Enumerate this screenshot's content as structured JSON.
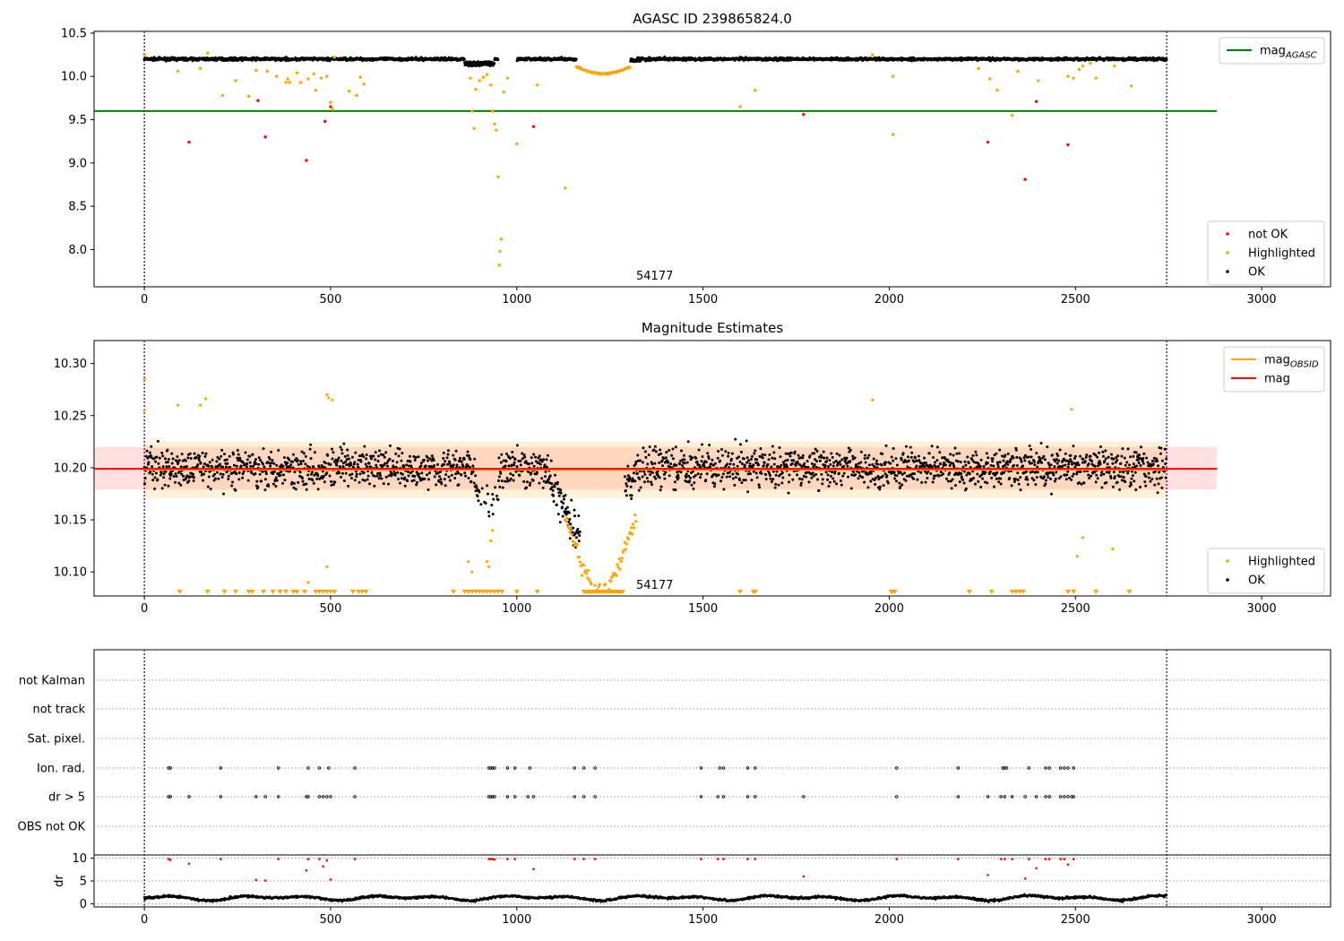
{
  "chart_data": [
    {
      "type": "scatter",
      "title": "AGASC ID 239865824.0",
      "xlim": [
        -135,
        3185
      ],
      "ylim": [
        7.57,
        10.52
      ],
      "xticks": [
        "0",
        "500",
        "1000",
        "1500",
        "2000",
        "2500",
        "3000"
      ],
      "yticks": [
        "8.0",
        "8.5",
        "9.0",
        "9.5",
        "10.0",
        "10.5"
      ],
      "annotation": "54177",
      "time_span": [
        0,
        2745
      ],
      "legends": [
        {
          "placement": "top-right",
          "entries": [
            {
              "label": "mag",
              "subscript": "AGASC",
              "color": "#008000",
              "kind": "line"
            }
          ]
        },
        {
          "placement": "bottom-right",
          "entries": [
            {
              "label": "not OK",
              "color": "#ff0000",
              "kind": "dot"
            },
            {
              "label": "Highlighted",
              "color": "#ffa500",
              "kind": "dot"
            },
            {
              "label": "OK",
              "color": "#000000",
              "kind": "dot"
            }
          ]
        }
      ],
      "lines": [
        {
          "name": "mag AGASC",
          "y": 9.6,
          "x": [
            -135,
            2880
          ],
          "color": "#008000"
        }
      ],
      "series": [
        {
          "name": "OK",
          "color": "#000000",
          "baseline": 10.2,
          "dip": {
            "from": 860,
            "to": 940,
            "min": 10.12
          }
        },
        {
          "name": "Highlighted",
          "color": "#ffa500",
          "points": [
            [
              0,
              10.25
            ],
            [
              90,
              10.06
            ],
            [
              150,
              10.09
            ],
            [
              170,
              10.27
            ],
            [
              210,
              9.78
            ],
            [
              245,
              9.95
            ],
            [
              280,
              9.77
            ],
            [
              300,
              10.07
            ],
            [
              330,
              10.06
            ],
            [
              355,
              10.0
            ],
            [
              380,
              9.93
            ],
            [
              385,
              9.97
            ],
            [
              390,
              9.93
            ],
            [
              410,
              10.04
            ],
            [
              420,
              9.93
            ],
            [
              440,
              9.97
            ],
            [
              455,
              10.03
            ],
            [
              460,
              9.84
            ],
            [
              475,
              9.98
            ],
            [
              490,
              10.0
            ],
            [
              500,
              9.7
            ],
            [
              505,
              9.62
            ],
            [
              510,
              10.22
            ],
            [
              550,
              9.83
            ],
            [
              570,
              9.78
            ],
            [
              580,
              9.99
            ],
            [
              590,
              9.91
            ],
            [
              875,
              9.98
            ],
            [
              880,
              9.6
            ],
            [
              885,
              9.4
            ],
            [
              890,
              9.85
            ],
            [
              900,
              9.95
            ],
            [
              910,
              9.99
            ],
            [
              920,
              10.02
            ],
            [
              930,
              9.9
            ],
            [
              935,
              9.6
            ],
            [
              940,
              9.45
            ],
            [
              945,
              9.38
            ],
            [
              950,
              8.84
            ],
            [
              953,
              7.82
            ],
            [
              955,
              7.98
            ],
            [
              958,
              8.12
            ],
            [
              965,
              9.82
            ],
            [
              975,
              9.98
            ],
            [
              1000,
              9.22
            ],
            [
              1055,
              9.9
            ],
            [
              1130,
              8.71
            ],
            [
              1600,
              9.65
            ],
            [
              1640,
              9.84
            ],
            [
              1955,
              10.25
            ],
            [
              2010,
              9.33
            ],
            [
              2010,
              10.0
            ],
            [
              2240,
              10.09
            ],
            [
              2270,
              9.97
            ],
            [
              2290,
              9.84
            ],
            [
              2330,
              9.55
            ],
            [
              2345,
              10.06
            ],
            [
              2400,
              9.95
            ],
            [
              2480,
              10.0
            ],
            [
              2495,
              9.98
            ],
            [
              2510,
              10.08
            ],
            [
              2520,
              10.12
            ],
            [
              2540,
              10.15
            ],
            [
              2555,
              9.98
            ],
            [
              2605,
              10.12
            ],
            [
              2650,
              9.89
            ]
          ],
          "trough": {
            "from": 1160,
            "to": 1305,
            "min": 10.03
          }
        },
        {
          "name": "not OK",
          "color": "#ff0000",
          "points": [
            [
              120,
              9.24
            ],
            [
              305,
              9.72
            ],
            [
              325,
              9.3
            ],
            [
              435,
              9.03
            ],
            [
              485,
              9.48
            ],
            [
              500,
              9.65
            ],
            [
              1045,
              9.42
            ],
            [
              1770,
              9.56
            ],
            [
              2265,
              9.24
            ],
            [
              2365,
              8.81
            ],
            [
              2395,
              9.71
            ],
            [
              2480,
              9.21
            ]
          ]
        }
      ]
    },
    {
      "type": "scatter",
      "title": "Magnitude Estimates",
      "xlim": [
        -135,
        3185
      ],
      "ylim": [
        10.077,
        10.322
      ],
      "xticks": [
        "0",
        "500",
        "1000",
        "1500",
        "2000",
        "2500",
        "3000"
      ],
      "yticks": [
        "10.10",
        "10.15",
        "10.20",
        "10.25",
        "10.30"
      ],
      "annotation": "54177",
      "legends": [
        {
          "placement": "top-right",
          "entries": [
            {
              "label": "mag",
              "subscript": "OBSID",
              "color": "#ffa500",
              "kind": "line"
            },
            {
              "label": "mag",
              "subscript": "",
              "color": "#ff0000",
              "kind": "line"
            }
          ]
        },
        {
          "placement": "bottom-right",
          "entries": [
            {
              "label": "Highlighted",
              "color": "#ffa500",
              "kind": "dot"
            },
            {
              "label": "OK",
              "color": "#000000",
              "kind": "dot"
            }
          ]
        }
      ],
      "mag": 10.199,
      "mag_band": [
        10.179,
        10.22
      ],
      "mag_obsid": 10.198,
      "mag_obsid_band": [
        10.171,
        10.225
      ],
      "series": [
        {
          "name": "OK",
          "color": "#000000",
          "center": 10.2,
          "spread": 0.018,
          "dips": [
            {
              "from": 880,
              "to": 960,
              "min": 10.13
            },
            {
              "from": 1050,
              "to": 1350,
              "min": 10.11
            }
          ]
        },
        {
          "name": "Highlighted",
          "color": "#ffa500",
          "points": [
            [
              0,
              10.285
            ],
            [
              0,
              10.255
            ],
            [
              90,
              10.26
            ],
            [
              150,
              10.26
            ],
            [
              165,
              10.266
            ],
            [
              440,
              10.09
            ],
            [
              490,
              10.27
            ],
            [
              495,
              10.267
            ],
            [
              505,
              10.265
            ],
            [
              490,
              10.105
            ],
            [
              870,
              10.11
            ],
            [
              880,
              10.1
            ],
            [
              920,
              10.11
            ],
            [
              925,
              10.105
            ],
            [
              930,
              10.13
            ],
            [
              935,
              10.14
            ],
            [
              1955,
              10.265
            ],
            [
              2490,
              10.256
            ],
            [
              2505,
              10.115
            ],
            [
              2520,
              10.133
            ],
            [
              2600,
              10.122
            ]
          ],
          "clipped_x": [
            95,
            170,
            215,
            245,
            280,
            290,
            320,
            345,
            365,
            380,
            400,
            410,
            430,
            460,
            470,
            480,
            490,
            500,
            510,
            560,
            575,
            585,
            595,
            830,
            860,
            870,
            880,
            890,
            900,
            910,
            920,
            930,
            940,
            950,
            960,
            1000,
            1055,
            1600,
            1635,
            1640,
            2005,
            2010,
            2015,
            2215,
            2275,
            2330,
            2340,
            2350,
            2360,
            2480,
            2495,
            2555,
            2645
          ]
        }
      ]
    },
    {
      "type": "scatter",
      "title": "",
      "xlim": [
        -135,
        3185
      ],
      "ylabel": "dr",
      "categories": [
        "not Kalman",
        "not track",
        "Sat. pixel.",
        "Ion. rad.",
        "dr > 5",
        "OBS not OK"
      ],
      "dr_yticks": [
        "0",
        "5",
        "10"
      ],
      "dr_ylim": [
        -0.7,
        10.7
      ],
      "xticks": [
        "0",
        "500",
        "1000",
        "1500",
        "2000",
        "2500",
        "3000"
      ],
      "flags": {
        "Ion. rad.": [
          65,
          70,
          205,
          360,
          440,
          470,
          495,
          565,
          925,
          930,
          935,
          940,
          975,
          995,
          1035,
          1155,
          1180,
          1210,
          1495,
          1545,
          1555,
          1620,
          1640,
          2020,
          2185,
          2305,
          2310,
          2315,
          2375,
          2420,
          2430,
          2460,
          2470,
          2480,
          2495
        ],
        "dr > 5": [
          65,
          70,
          120,
          205,
          300,
          325,
          360,
          435,
          440,
          470,
          480,
          490,
          500,
          565,
          925,
          930,
          935,
          940,
          975,
          995,
          1030,
          1045,
          1155,
          1180,
          1210,
          1495,
          1540,
          1555,
          1620,
          1640,
          1770,
          2020,
          2185,
          2265,
          2300,
          2310,
          2330,
          2365,
          2395,
          2420,
          2430,
          2460,
          2470,
          2480,
          2490,
          2495
        ]
      },
      "dr_red_points": [
        [
          65,
          9.8
        ],
        [
          70,
          9.6
        ],
        [
          120,
          8.8
        ],
        [
          205,
          9.8
        ],
        [
          300,
          5.2
        ],
        [
          325,
          5.1
        ],
        [
          360,
          9.8
        ],
        [
          435,
          7.3
        ],
        [
          440,
          9.8
        ],
        [
          470,
          9.8
        ],
        [
          480,
          8.2
        ],
        [
          490,
          9.5
        ],
        [
          500,
          5.3
        ],
        [
          565,
          9.8
        ],
        [
          925,
          9.8
        ],
        [
          930,
          9.8
        ],
        [
          935,
          9.8
        ],
        [
          940,
          9.7
        ],
        [
          975,
          9.8
        ],
        [
          995,
          9.8
        ],
        [
          1045,
          7.6
        ],
        [
          1155,
          9.8
        ],
        [
          1180,
          9.8
        ],
        [
          1210,
          9.8
        ],
        [
          1495,
          9.8
        ],
        [
          1540,
          9.8
        ],
        [
          1555,
          9.8
        ],
        [
          1620,
          9.8
        ],
        [
          1640,
          9.8
        ],
        [
          1770,
          6.0
        ],
        [
          2020,
          9.8
        ],
        [
          2185,
          9.8
        ],
        [
          2265,
          6.3
        ],
        [
          2300,
          9.8
        ],
        [
          2310,
          9.8
        ],
        [
          2330,
          9.8
        ],
        [
          2365,
          5.5
        ],
        [
          2375,
          9.8
        ],
        [
          2395,
          7.8
        ],
        [
          2420,
          9.8
        ],
        [
          2430,
          9.8
        ],
        [
          2460,
          9.8
        ],
        [
          2470,
          9.8
        ],
        [
          2480,
          8.6
        ],
        [
          2495,
          9.8
        ]
      ],
      "dr_baseline": 1.3
    }
  ]
}
